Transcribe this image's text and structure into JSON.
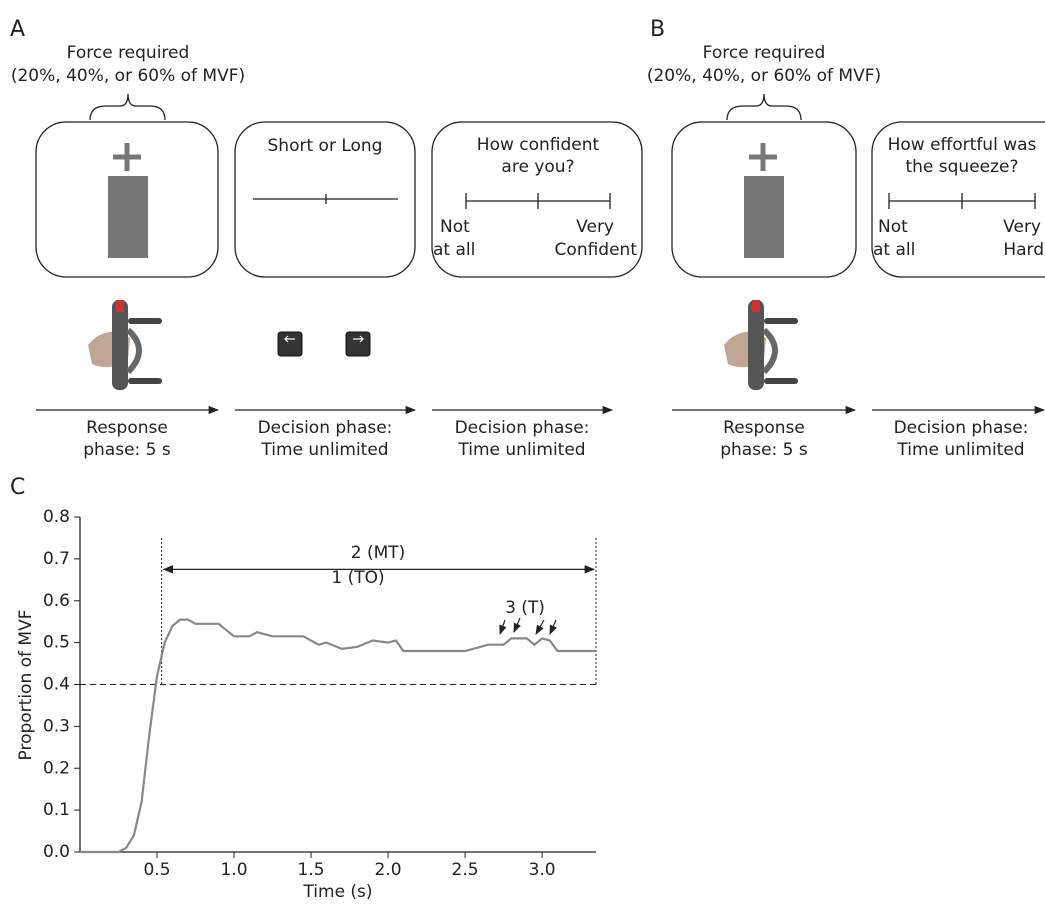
{
  "panel_labels": [
    "A",
    "B",
    "C"
  ],
  "panel_a": {
    "force_label": "Force required",
    "force_options": "(20%, 40%, or 60% of MVF)",
    "duration_screen_title": "Short or Long",
    "confidence_question": [
      "How confident",
      "are you?"
    ],
    "scale_low": [
      "Not",
      "at all"
    ],
    "scale_high": [
      "Very",
      "Confident"
    ],
    "phases": [
      [
        "Response",
        "phase: 5 s"
      ],
      [
        "Decision phase:",
        "Time unlimited"
      ],
      [
        "Decision phase:",
        "Time unlimited"
      ]
    ]
  },
  "panel_b": {
    "force_label": "Force required",
    "force_options": "(20%, 40%, or 60% of MVF)",
    "effort_question": [
      "How effortful was",
      "the squeeze?"
    ],
    "scale_low": [
      "Not",
      "at all"
    ],
    "scale_high": [
      "Very",
      "Hard"
    ],
    "phases": [
      [
        "Response",
        "phase: 5 s"
      ],
      [
        "Decision phase:",
        "Time unlimited"
      ]
    ]
  },
  "chart_data": {
    "type": "line",
    "x_label": "Time (s)",
    "y_label": "Proportion of MVF",
    "color": "#888888",
    "x": [
      0,
      0.25,
      0.3,
      0.35,
      0.4,
      0.45,
      0.5,
      0.55,
      0.6,
      0.65,
      0.7,
      0.75,
      0.9,
      1.0,
      1.1,
      1.15,
      1.25,
      1.45,
      1.55,
      1.6,
      1.7,
      1.8,
      1.9,
      2.0,
      2.05,
      2.1,
      2.5,
      2.6,
      2.65,
      2.75,
      2.8,
      2.9,
      2.95,
      3.0,
      3.05,
      3.1,
      3.35
    ],
    "values": [
      0,
      0,
      0.01,
      0.04,
      0.12,
      0.28,
      0.42,
      0.5,
      0.54,
      0.555,
      0.555,
      0.545,
      0.545,
      0.515,
      0.515,
      0.525,
      0.515,
      0.515,
      0.495,
      0.5,
      0.485,
      0.49,
      0.505,
      0.5,
      0.505,
      0.48,
      0.48,
      0.49,
      0.495,
      0.495,
      0.51,
      0.51,
      0.495,
      0.51,
      0.505,
      0.48,
      0.48
    ],
    "threshold": 0.4,
    "window": [
      0.53,
      3.35
    ],
    "annotations": [
      "1 (TO)",
      "2 (MT)",
      "3 (T)"
    ],
    "xlim": [
      0,
      3.35
    ],
    "ylim": [
      0,
      0.8
    ],
    "xticks": [
      0.5,
      {
        "value": 1,
        "label": "1.0"
      },
      1.5,
      {
        "value": 2,
        "label": "2.0"
      },
      2.5,
      {
        "value": 3,
        "label": "3.0"
      }
    ],
    "yticks": [
      {
        "value": 0,
        "label": "0.0"
      },
      0.1,
      0.2,
      0.3,
      0.4,
      0.5,
      0.6,
      0.7,
      0.8
    ]
  }
}
